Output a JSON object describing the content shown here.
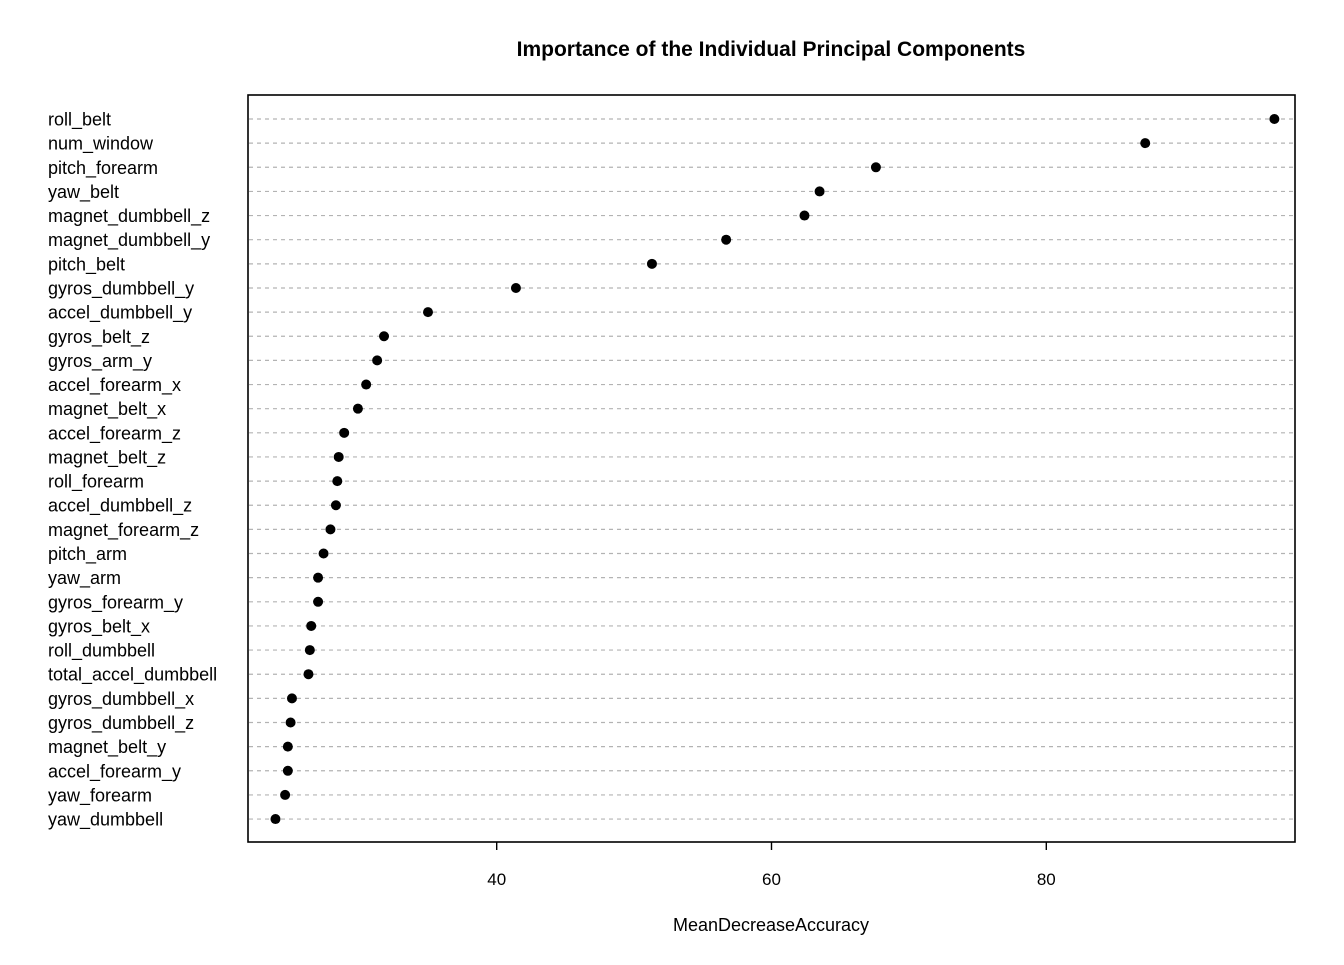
{
  "chart_data": {
    "type": "scatter",
    "subtype": "dotchart",
    "title": "Importance of the Individual Principal Components",
    "xlabel": "MeanDecreaseAccuracy",
    "ylabel": "",
    "xlim": [
      21.9,
      98.1
    ],
    "xticks": [
      40,
      60,
      80
    ],
    "grid": "horizontal dashed",
    "legend": "none",
    "categories": [
      "roll_belt",
      "num_window",
      "pitch_forearm",
      "yaw_belt",
      "magnet_dumbbell_z",
      "magnet_dumbbell_y",
      "pitch_belt",
      "gyros_dumbbell_y",
      "accel_dumbbell_y",
      "gyros_belt_z",
      "gyros_arm_y",
      "accel_forearm_x",
      "magnet_belt_x",
      "accel_forearm_z",
      "magnet_belt_z",
      "roll_forearm",
      "accel_dumbbell_z",
      "magnet_forearm_z",
      "pitch_arm",
      "yaw_arm",
      "gyros_forearm_y",
      "gyros_belt_x",
      "roll_dumbbell",
      "total_accel_dumbbell",
      "gyros_dumbbell_x",
      "gyros_dumbbell_z",
      "magnet_belt_y",
      "accel_forearm_y",
      "yaw_forearm",
      "yaw_dumbbell"
    ],
    "values": [
      96.6,
      87.2,
      67.6,
      63.5,
      62.4,
      56.7,
      51.3,
      41.4,
      35.0,
      31.8,
      31.3,
      30.5,
      29.9,
      28.9,
      28.5,
      28.4,
      28.3,
      27.9,
      27.4,
      27.0,
      27.0,
      26.5,
      26.4,
      26.3,
      25.1,
      25.0,
      24.8,
      24.8,
      24.6,
      23.9
    ],
    "colors": {
      "point": "#000000",
      "grid": "#b3b3b3",
      "frame": "#000000"
    }
  }
}
